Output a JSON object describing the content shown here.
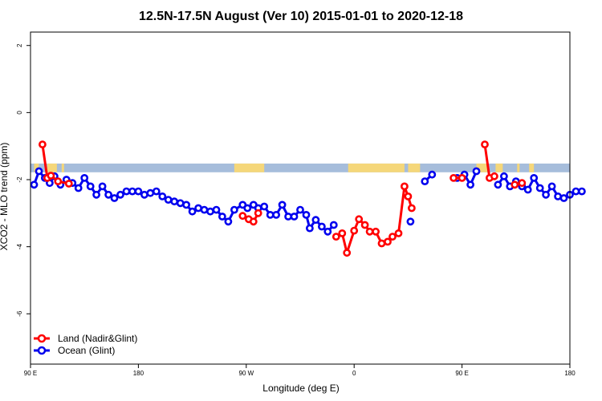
{
  "chart_data": {
    "type": "line",
    "title": "12.5N-17.5N August (Ver 10)   2015-01-01 to 2020-12-18",
    "xlabel": "Longitude (deg E)",
    "ylabel": "XCO2 - MLO trend (ppm)",
    "x_ticks": [
      {
        "pos": 90,
        "label": "90 E"
      },
      {
        "pos": 180,
        "label": "180"
      },
      {
        "pos": 270,
        "label": "90 W"
      },
      {
        "pos": 360,
        "label": "0"
      },
      {
        "pos": 450,
        "label": "90 E"
      },
      {
        "pos": 540,
        "label": "180"
      }
    ],
    "y_ticks": [
      2,
      0,
      -2,
      -4,
      -6
    ],
    "xlim": [
      90,
      540
    ],
    "ylim": [
      -7.5,
      2.4
    ],
    "grid": false,
    "legend_position": "bottom-left",
    "land_band": {
      "y_top": -1.52,
      "y_bottom": -1.78
    },
    "colors": {
      "land": "#ff0000",
      "ocean": "#0000ee",
      "band_ocean": "#a6bddb",
      "band_land": "#f5d77a"
    },
    "series": [
      {
        "name": "Land (Nadir&Glint)",
        "color": "#ff0000",
        "segments": [
          [
            [
              100,
              -0.95
            ],
            [
              104,
              -1.95
            ],
            [
              107,
              -1.88
            ],
            [
              113,
              -2.05
            ],
            [
              122,
              -2.12
            ]
          ],
          [
            [
              267,
              -3.08
            ],
            [
              272,
              -3.18
            ],
            [
              276,
              -3.25
            ],
            [
              280,
              -3.0
            ]
          ],
          [
            [
              345,
              -3.7
            ],
            [
              350,
              -3.6
            ],
            [
              354,
              -4.18
            ],
            [
              360,
              -3.52
            ],
            [
              364,
              -3.18
            ],
            [
              369,
              -3.35
            ],
            [
              373,
              -3.55
            ],
            [
              378,
              -3.55
            ],
            [
              383,
              -3.9
            ],
            [
              388,
              -3.85
            ],
            [
              392,
              -3.7
            ],
            [
              397,
              -3.6
            ],
            [
              402,
              -2.2
            ],
            [
              405,
              -2.5
            ],
            [
              408,
              -2.85
            ]
          ],
          [
            [
              443,
              -1.95
            ],
            [
              450,
              -1.95
            ]
          ],
          [
            [
              469,
              -0.95
            ],
            [
              473,
              -1.95
            ],
            [
              477,
              -1.9
            ]
          ],
          [
            [
              494,
              -2.15
            ],
            [
              500,
              -2.1
            ]
          ]
        ]
      },
      {
        "name": "Ocean (Glint)",
        "color": "#0000ee",
        "segments": [
          [
            [
              93,
              -2.15
            ],
            [
              97,
              -1.75
            ],
            [
              102,
              -1.95
            ],
            [
              106,
              -2.1
            ],
            [
              110,
              -1.9
            ],
            [
              115,
              -2.15
            ],
            [
              120,
              -2.0
            ],
            [
              125,
              -2.1
            ],
            [
              130,
              -2.25
            ],
            [
              135,
              -1.95
            ],
            [
              140,
              -2.2
            ],
            [
              145,
              -2.45
            ],
            [
              150,
              -2.2
            ],
            [
              155,
              -2.45
            ],
            [
              160,
              -2.55
            ],
            [
              165,
              -2.45
            ],
            [
              170,
              -2.35
            ],
            [
              175,
              -2.35
            ],
            [
              180,
              -2.35
            ],
            [
              185,
              -2.45
            ],
            [
              190,
              -2.4
            ],
            [
              195,
              -2.35
            ],
            [
              200,
              -2.5
            ],
            [
              205,
              -2.6
            ],
            [
              210,
              -2.65
            ],
            [
              215,
              -2.7
            ],
            [
              220,
              -2.75
            ],
            [
              225,
              -2.95
            ],
            [
              230,
              -2.85
            ],
            [
              235,
              -2.9
            ],
            [
              240,
              -2.95
            ],
            [
              245,
              -2.9
            ],
            [
              250,
              -3.1
            ],
            [
              255,
              -3.25
            ],
            [
              260,
              -2.9
            ],
            [
              267,
              -2.75
            ],
            [
              271,
              -2.85
            ],
            [
              276,
              -2.75
            ],
            [
              280,
              -2.85
            ],
            [
              285,
              -2.8
            ],
            [
              290,
              -3.05
            ],
            [
              295,
              -3.05
            ],
            [
              300,
              -2.75
            ],
            [
              305,
              -3.1
            ],
            [
              310,
              -3.1
            ],
            [
              315,
              -2.9
            ],
            [
              320,
              -3.05
            ],
            [
              323,
              -3.45
            ],
            [
              328,
              -3.2
            ],
            [
              333,
              -3.4
            ],
            [
              338,
              -3.55
            ],
            [
              343,
              -3.35
            ]
          ],
          [
            [
              407,
              -3.25
            ]
          ],
          [
            [
              419,
              -2.05
            ],
            [
              425,
              -1.85
            ]
          ],
          [
            [
              446,
              -1.95
            ],
            [
              452,
              -1.85
            ],
            [
              457,
              -2.15
            ],
            [
              462,
              -1.75
            ]
          ],
          [
            [
              480,
              -2.15
            ],
            [
              485,
              -1.9
            ],
            [
              490,
              -2.2
            ],
            [
              495,
              -2.05
            ],
            [
              500,
              -2.2
            ],
            [
              505,
              -2.3
            ],
            [
              510,
              -1.95
            ],
            [
              515,
              -2.25
            ],
            [
              520,
              -2.45
            ],
            [
              525,
              -2.2
            ],
            [
              530,
              -2.5
            ],
            [
              535,
              -2.55
            ],
            [
              540,
              -2.45
            ],
            [
              545,
              -2.35
            ],
            [
              550,
              -2.35
            ]
          ]
        ]
      }
    ]
  }
}
